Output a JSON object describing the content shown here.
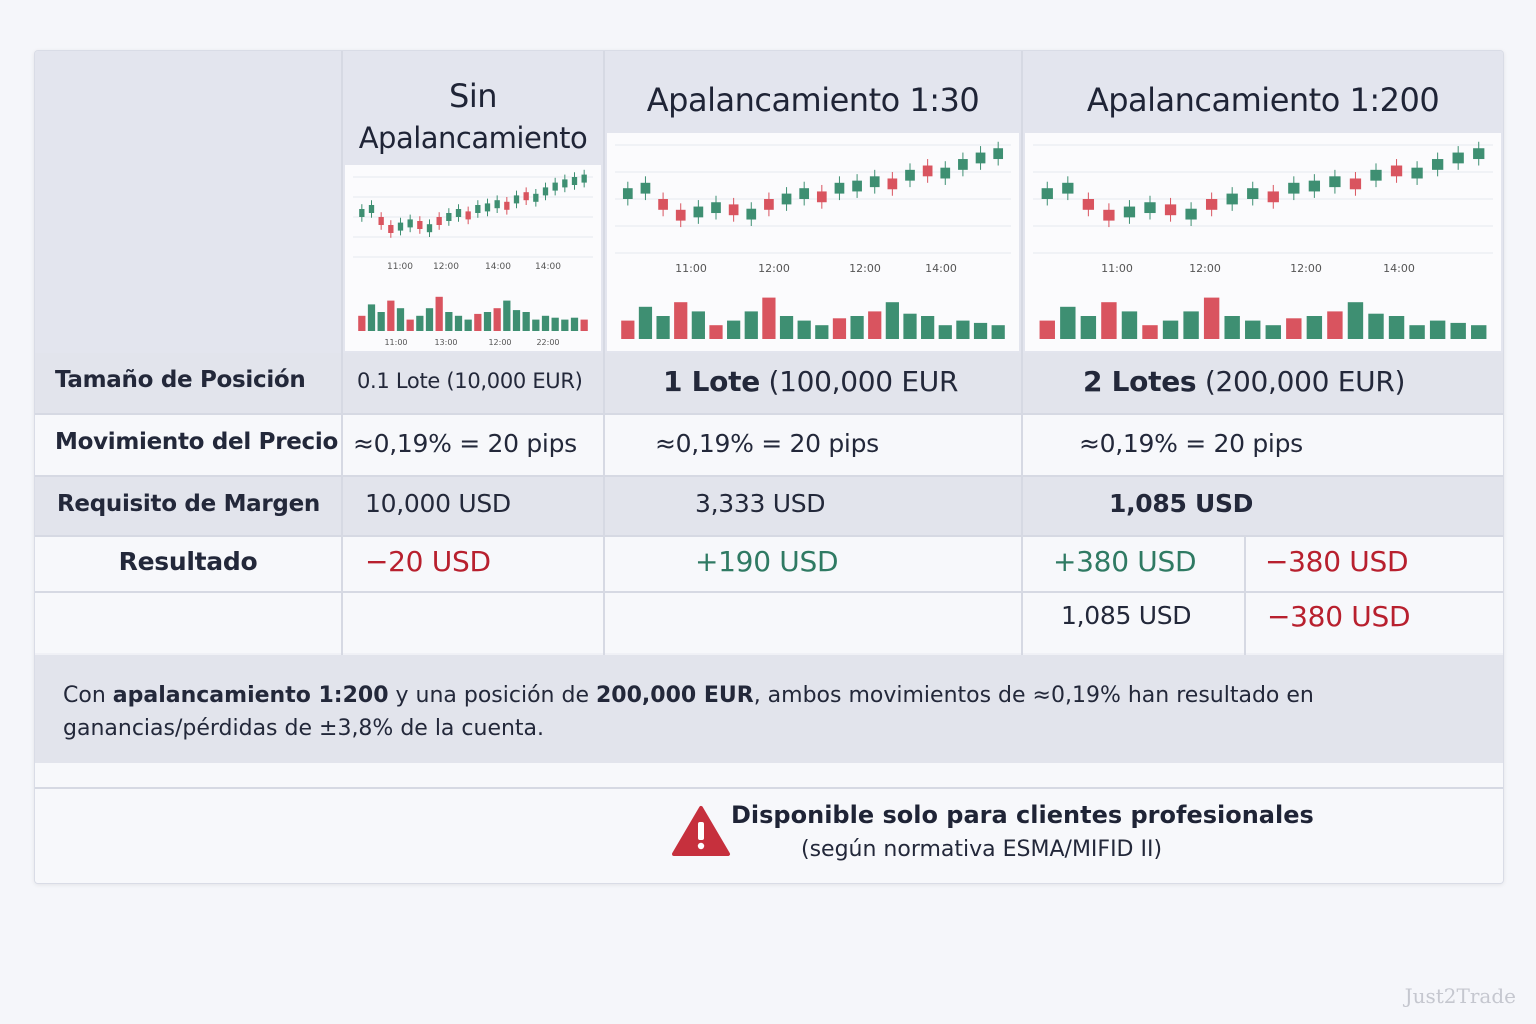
{
  "columns": [
    {
      "title_line1": "Sin",
      "title_line2": "Apalancamiento"
    },
    {
      "title_line1": "Apalancamiento 1:30"
    },
    {
      "title_line1": "Apalancamiento 1:200"
    }
  ],
  "charts": [
    {
      "time_labels": [
        "11:00",
        "12:00",
        "14:00",
        "14:00"
      ],
      "volume_labels": [
        "11:00",
        "13:00",
        "12:00",
        "22:00"
      ]
    },
    {
      "time_labels": [
        "11:00",
        "12:00",
        "12:00",
        "14:00"
      ]
    },
    {
      "time_labels": [
        "11:00",
        "12:00",
        "12:00",
        "14:00"
      ]
    }
  ],
  "rows": {
    "position_size": {
      "label": "Tamaño de Posición",
      "col1": "0.1 Lote (10,000 EUR)",
      "col2_bold": "1 Lote",
      "col2_rest": " (100,000 EUR",
      "col3_bold": "2 Lotes",
      "col3_rest": " (200,000 EUR)"
    },
    "price_move": {
      "label": "Movimiento del Precio",
      "col1": "≈0,19% = 20 pips",
      "col2": "≈0,19% = 20 pips",
      "col3": "≈0,19% = 20 pips"
    },
    "margin": {
      "label": "Requisito de Margen",
      "col1": "10,000 USD",
      "col2": "3,333 USD",
      "col3": "1,085 USD"
    },
    "result": {
      "label": "Resultado",
      "col1": "−20 USD",
      "col2": "+190 USD",
      "col3a": "+380 USD",
      "col3b": "−380 USD",
      "col3c": "1,085 USD",
      "col3d": "−380 USD"
    }
  },
  "note": {
    "p1": "Con ",
    "b1": "apalancamiento 1:200",
    "p2": " y una posición de ",
    "b2": "200,000 EUR",
    "p3": ", ambos movimientos de ≈0,19% han resultado en ganancias/pérdidas de ±3,8% de la cuenta."
  },
  "warning": {
    "title": "Disponible solo para clientes profesionales",
    "subtitle": "(según normativa ESMA/MIFID II)"
  },
  "watermark": "Just2Trade",
  "colors": {
    "up": "#3e8f72",
    "down": "#d9545f",
    "negative_text": "#b8202e",
    "positive_text": "#2f7a63"
  }
}
